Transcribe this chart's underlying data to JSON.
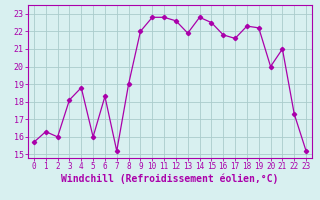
{
  "x": [
    0,
    1,
    2,
    3,
    4,
    5,
    6,
    7,
    8,
    9,
    10,
    11,
    12,
    13,
    14,
    15,
    16,
    17,
    18,
    19,
    20,
    21,
    22,
    23
  ],
  "y": [
    15.7,
    16.3,
    16.0,
    18.1,
    18.8,
    16.0,
    18.3,
    15.2,
    19.0,
    22.0,
    22.8,
    22.8,
    22.6,
    21.9,
    22.8,
    22.5,
    21.8,
    21.6,
    22.3,
    22.2,
    20.0,
    21.0,
    17.3,
    15.2
  ],
  "line_color": "#aa00aa",
  "marker": "D",
  "marker_size": 2.2,
  "bg_color": "#d8f0f0",
  "grid_color": "#aacccc",
  "xlabel": "Windchill (Refroidissement éolien,°C)",
  "xlabel_fontsize": 7,
  "xlabel_color": "#aa00aa",
  "tick_color": "#aa00aa",
  "ylim": [
    14.8,
    23.5
  ],
  "xlim": [
    -0.5,
    23.5
  ],
  "xtick_fontsize": 5.5,
  "ytick_fontsize": 6
}
